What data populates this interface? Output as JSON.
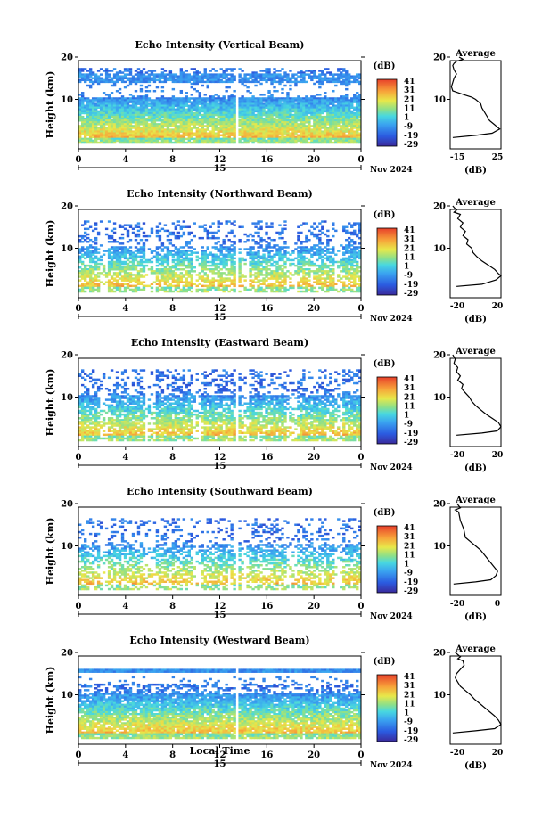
{
  "common": {
    "ylabel": "Height (km)",
    "y_ticks": [
      "20",
      "10"
    ],
    "x_ticks": [
      "0",
      "4",
      "8",
      "12",
      "16",
      "20",
      "0"
    ],
    "day_label": "15",
    "date_label": "Nov 2024",
    "colorbar_unit": "(dB)",
    "colorbar_ticks": [
      "41",
      "31",
      "21",
      "11",
      "1",
      "-9",
      "-19",
      "-29"
    ],
    "avg_title": "Average",
    "avg_xlabel": "(dB)",
    "xlabel_bottom": "Local Time"
  },
  "chart_data": [
    {
      "type": "heatmap",
      "title": "Echo Intensity (Vertical Beam)",
      "x_range": [
        0,
        24
      ],
      "y_range": [
        0,
        20
      ],
      "colorbar_range": [
        -29,
        41
      ],
      "avg_profile": {
        "x_ticks": [
          "-15",
          "25"
        ],
        "xlim": [
          -15,
          25
        ],
        "ylim": [
          0,
          20
        ],
        "points": [
          [
            -8,
            20
          ],
          [
            -5,
            19.5
          ],
          [
            -10,
            19
          ],
          [
            -12,
            18.5
          ],
          [
            -13,
            18
          ],
          [
            -12,
            17
          ],
          [
            -10,
            16
          ],
          [
            -12,
            15
          ],
          [
            -13,
            14
          ],
          [
            -14,
            13
          ],
          [
            -13,
            12
          ],
          [
            -8,
            11.5
          ],
          [
            -3,
            11
          ],
          [
            2,
            10.5
          ],
          [
            5,
            10
          ],
          [
            7,
            9.5
          ],
          [
            9,
            9
          ],
          [
            10,
            8
          ],
          [
            12,
            7
          ],
          [
            14,
            6
          ],
          [
            16,
            5
          ],
          [
            20,
            4
          ],
          [
            22,
            3.5
          ],
          [
            24,
            3
          ],
          [
            18,
            2
          ],
          [
            5,
            1.5
          ],
          [
            -13,
            1
          ]
        ]
      }
    },
    {
      "type": "heatmap",
      "title": "Echo Intensity (Northward Beam)",
      "x_range": [
        0,
        24
      ],
      "y_range": [
        0,
        20
      ],
      "colorbar_range": [
        -29,
        41
      ],
      "avg_profile": {
        "x_ticks": [
          "-20",
          "20"
        ],
        "xlim": [
          -20,
          20
        ],
        "ylim": [
          0,
          20
        ],
        "points": [
          [
            -18,
            20
          ],
          [
            -15,
            19
          ],
          [
            -17,
            18.5
          ],
          [
            -12,
            18
          ],
          [
            -14,
            17
          ],
          [
            -10,
            16
          ],
          [
            -12,
            15
          ],
          [
            -8,
            14
          ],
          [
            -10,
            13
          ],
          [
            -6,
            12
          ],
          [
            -7,
            11
          ],
          [
            -3,
            10
          ],
          [
            -2,
            9
          ],
          [
            1,
            8
          ],
          [
            5,
            7
          ],
          [
            10,
            6
          ],
          [
            15,
            5
          ],
          [
            18,
            4
          ],
          [
            20,
            3.5
          ],
          [
            16,
            2.5
          ],
          [
            5,
            1.5
          ],
          [
            -15,
            1
          ]
        ]
      }
    },
    {
      "type": "heatmap",
      "title": "Echo Intensity (Eastward Beam)",
      "x_range": [
        0,
        24
      ],
      "y_range": [
        0,
        20
      ],
      "colorbar_range": [
        -29,
        41
      ],
      "avg_profile": {
        "x_ticks": [
          "-20",
          "20"
        ],
        "xlim": [
          -20,
          20
        ],
        "ylim": [
          0,
          20
        ],
        "points": [
          [
            -18,
            20
          ],
          [
            -16,
            19
          ],
          [
            -17,
            18
          ],
          [
            -14,
            17
          ],
          [
            -15,
            16
          ],
          [
            -12,
            15
          ],
          [
            -14,
            14
          ],
          [
            -10,
            13
          ],
          [
            -11,
            12
          ],
          [
            -8,
            11
          ],
          [
            -5,
            10
          ],
          [
            -3,
            9
          ],
          [
            0,
            8
          ],
          [
            4,
            7
          ],
          [
            8,
            6
          ],
          [
            13,
            5
          ],
          [
            18,
            4
          ],
          [
            20,
            3
          ],
          [
            17,
            2
          ],
          [
            5,
            1.5
          ],
          [
            -15,
            1
          ]
        ]
      }
    },
    {
      "type": "heatmap",
      "title": "Echo Intensity (Southward Beam)",
      "x_range": [
        0,
        24
      ],
      "y_range": [
        0,
        20
      ],
      "colorbar_range": [
        -29,
        41
      ],
      "avg_profile": {
        "x_ticks": [
          "-20",
          "0"
        ],
        "xlim": [
          -20,
          10
        ],
        "ylim": [
          0,
          20
        ],
        "points": [
          [
            -16,
            20
          ],
          [
            -14,
            19
          ],
          [
            -17,
            18.5
          ],
          [
            -15,
            18
          ],
          [
            -14,
            16
          ],
          [
            -12,
            14
          ],
          [
            -11,
            12
          ],
          [
            -8,
            11
          ],
          [
            -5,
            10
          ],
          [
            -2,
            9
          ],
          [
            0,
            8
          ],
          [
            2,
            7
          ],
          [
            4,
            6
          ],
          [
            6,
            5
          ],
          [
            8,
            4
          ],
          [
            7,
            3
          ],
          [
            4,
            2
          ],
          [
            -5,
            1.5
          ],
          [
            -18,
            1
          ]
        ]
      }
    },
    {
      "type": "heatmap",
      "title": "Echo Intensity (Westward Beam)",
      "x_range": [
        0,
        24
      ],
      "y_range": [
        0,
        20
      ],
      "colorbar_range": [
        -29,
        41
      ],
      "avg_profile": {
        "x_ticks": [
          "-20",
          "20"
        ],
        "xlim": [
          -20,
          20
        ],
        "ylim": [
          0,
          20
        ],
        "points": [
          [
            -16,
            20
          ],
          [
            -12,
            19
          ],
          [
            -14,
            18.5
          ],
          [
            -10,
            18
          ],
          [
            -9,
            17
          ],
          [
            -12,
            16
          ],
          [
            -15,
            15
          ],
          [
            -16,
            14
          ],
          [
            -14,
            13
          ],
          [
            -12,
            12
          ],
          [
            -8,
            11
          ],
          [
            -4,
            10
          ],
          [
            -1,
            9
          ],
          [
            3,
            8
          ],
          [
            7,
            7
          ],
          [
            11,
            6
          ],
          [
            15,
            5
          ],
          [
            18,
            4
          ],
          [
            20,
            3
          ],
          [
            15,
            2
          ],
          [
            0,
            1.5
          ],
          [
            -18,
            1
          ]
        ]
      }
    }
  ]
}
